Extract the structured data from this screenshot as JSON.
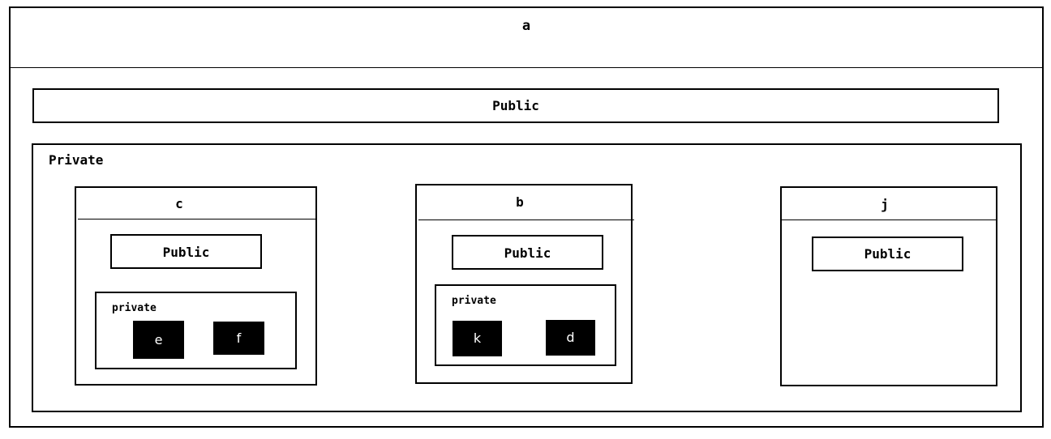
{
  "outer": {
    "title": "a"
  },
  "top_public": {
    "label": "Public"
  },
  "private_section": {
    "label": "Private",
    "modules": [
      {
        "title": "c",
        "public_label": "Public",
        "private_label": "private",
        "private_items": [
          "e",
          "f"
        ]
      },
      {
        "title": "b",
        "public_label": "Public",
        "private_label": "private",
        "private_items": [
          "k",
          "d"
        ]
      },
      {
        "title": "j",
        "public_label": "Public"
      }
    ]
  }
}
